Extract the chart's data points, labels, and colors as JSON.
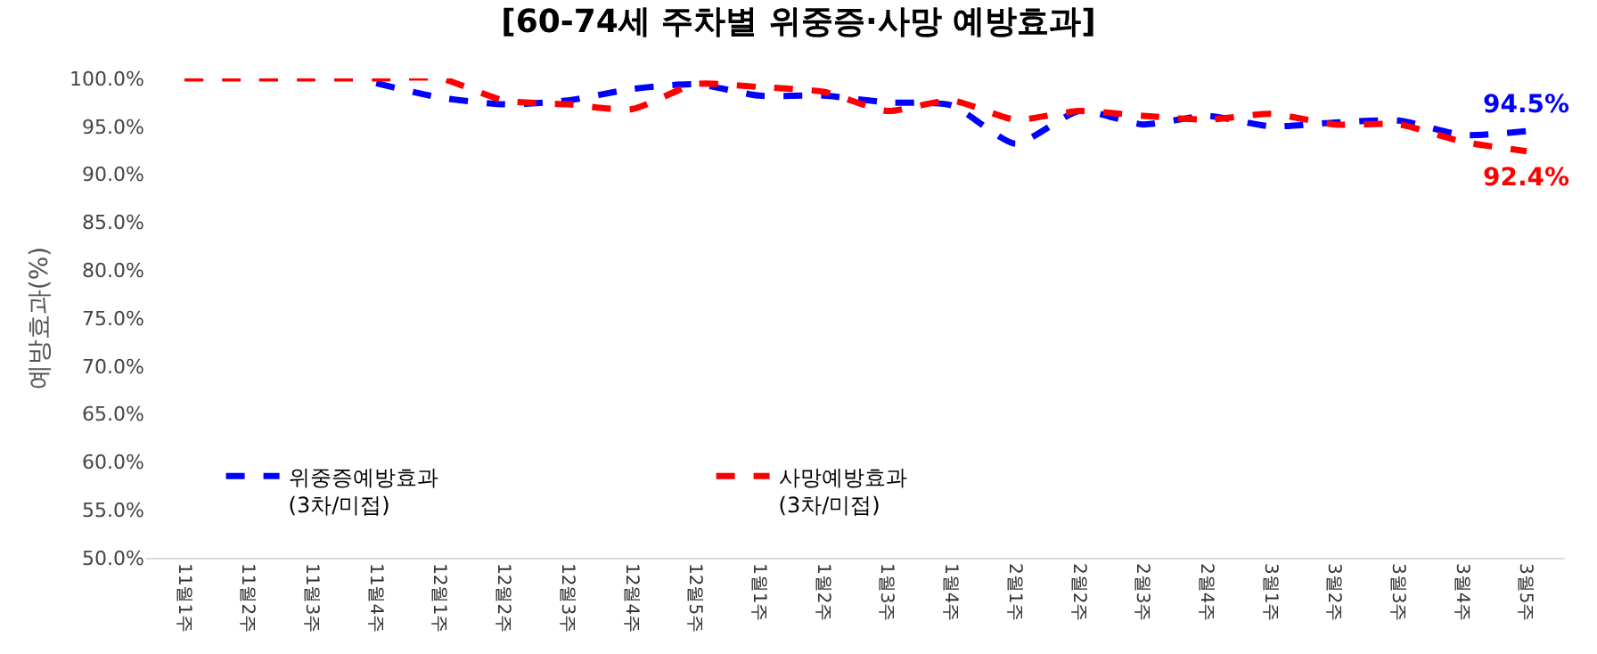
{
  "chart_data": {
    "type": "line",
    "title": "[60-74세 주차별 위중증·사망 예방효과]",
    "ylabel": "예방효과(%)",
    "categories": [
      "11월1주",
      "11월2주",
      "11월3주",
      "11월4주",
      "12월1주",
      "12월2주",
      "12월3주",
      "12월4주",
      "12월5주",
      "1월1주",
      "1월2주",
      "1월3주",
      "1월4주",
      "2월1주",
      "2월2주",
      "2월3주",
      "2월4주",
      "3월1주",
      "3월2주",
      "3월3주",
      "3월4주",
      "3월5주"
    ],
    "series": [
      {
        "name": "위중증예방효과\n(3차/미접)",
        "color": "#0000ff",
        "values": [
          null,
          null,
          null,
          99.5,
          98.0,
          97.3,
          97.7,
          98.9,
          99.4,
          98.2,
          98.2,
          97.5,
          97.2,
          93.2,
          96.6,
          95.2,
          96.1,
          95.0,
          95.4,
          95.6,
          94.1,
          94.5
        ],
        "value_labels": [
          null,
          null,
          null,
          null,
          null,
          null,
          null,
          null,
          null,
          null,
          null,
          null,
          null,
          null,
          null,
          null,
          null,
          null,
          null,
          null,
          null,
          "94.5%"
        ]
      },
      {
        "name": "사망예방효과\n(3차/미접)",
        "color": "#ff0000",
        "values": [
          100,
          100,
          100,
          100,
          100,
          97.7,
          97.3,
          96.8,
          99.4,
          99.1,
          98.6,
          96.6,
          97.7,
          95.7,
          96.6,
          96.1,
          95.7,
          96.3,
          95.2,
          95.2,
          93.4,
          92.4
        ],
        "value_labels": [
          null,
          null,
          null,
          null,
          null,
          null,
          null,
          null,
          null,
          null,
          null,
          null,
          null,
          null,
          null,
          null,
          null,
          null,
          null,
          null,
          null,
          "92.4%"
        ]
      }
    ],
    "ylim": [
      50,
      100
    ],
    "yticks": [
      {
        "value": 50,
        "label": "50.0%"
      },
      {
        "value": 55,
        "label": "55.0%"
      },
      {
        "value": 60,
        "label": "60.0%"
      },
      {
        "value": 65,
        "label": "65.0%"
      },
      {
        "value": 70,
        "label": "70.0%"
      },
      {
        "value": 75,
        "label": "75.0%"
      },
      {
        "value": 80,
        "label": "80.0%"
      },
      {
        "value": 85,
        "label": "85.0%"
      },
      {
        "value": 90,
        "label": "90.0%"
      },
      {
        "value": 95,
        "label": "95.0%"
      },
      {
        "value": 100,
        "label": "100.0%"
      }
    ],
    "legend": "bottom left",
    "line_style": "dashed",
    "marker": "none"
  }
}
